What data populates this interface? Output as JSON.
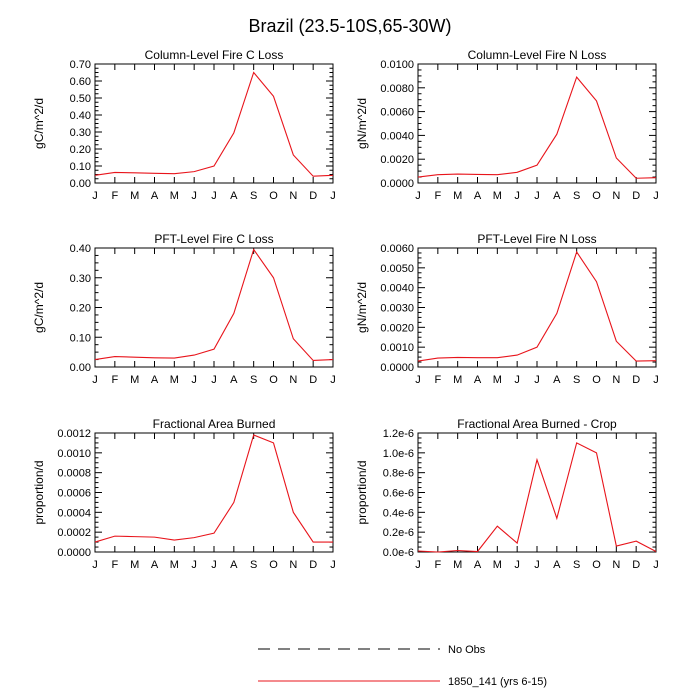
{
  "figure": {
    "title": "Brazil (23.5-10S,65-30W)"
  },
  "colors": {
    "series": "#e8141b",
    "axes": "#000000",
    "background": "#ffffff"
  },
  "legend": {
    "items": [
      {
        "label": "No Obs",
        "style": "dashed",
        "color": "#000000"
      },
      {
        "label": "1850_141 (yrs 6-15)",
        "style": "solid",
        "color": "#e8141b"
      }
    ]
  },
  "chart_data": [
    {
      "type": "line",
      "title": "Column-Level Fire C Loss",
      "ylabel": "gC/m^2/d",
      "xticks": [
        "J",
        "F",
        "M",
        "A",
        "M",
        "J",
        "J",
        "A",
        "S",
        "O",
        "N",
        "D",
        "J"
      ],
      "ylim": [
        0,
        0.7
      ],
      "yticks": [
        0.0,
        0.1,
        0.2,
        0.3,
        0.4,
        0.5,
        0.6,
        0.7
      ],
      "ytick_labels": [
        "0.00",
        "0.10",
        "0.20",
        "0.30",
        "0.40",
        "0.50",
        "0.60",
        "0.70"
      ],
      "series": [
        {
          "values": [
            0.045,
            0.062,
            0.06,
            0.057,
            0.055,
            0.067,
            0.1,
            0.295,
            0.65,
            0.51,
            0.165,
            0.04,
            0.045
          ]
        }
      ]
    },
    {
      "type": "line",
      "title": "Column-Level Fire N Loss",
      "ylabel": "gN/m^2/d",
      "xticks": [
        "J",
        "F",
        "M",
        "A",
        "M",
        "J",
        "J",
        "A",
        "S",
        "O",
        "N",
        "D",
        "J"
      ],
      "ylim": [
        0,
        0.01
      ],
      "yticks": [
        0.0,
        0.002,
        0.004,
        0.006,
        0.008,
        0.01
      ],
      "ytick_labels": [
        "0.0000",
        "0.0020",
        "0.0040",
        "0.0060",
        "0.0080",
        "0.0100"
      ],
      "series": [
        {
          "values": [
            0.0005,
            0.0007,
            0.00075,
            0.00072,
            0.0007,
            0.0009,
            0.0015,
            0.0041,
            0.0089,
            0.0069,
            0.0021,
            0.0004,
            0.00045
          ]
        }
      ]
    },
    {
      "type": "line",
      "title": "PFT-Level Fire C Loss",
      "ylabel": "gC/m^2/d",
      "xticks": [
        "J",
        "F",
        "M",
        "A",
        "M",
        "J",
        "J",
        "A",
        "S",
        "O",
        "N",
        "D",
        "J"
      ],
      "ylim": [
        0,
        0.4
      ],
      "yticks": [
        0.0,
        0.1,
        0.2,
        0.3,
        0.4
      ],
      "ytick_labels": [
        "0.00",
        "0.10",
        "0.20",
        "0.30",
        "0.40"
      ],
      "series": [
        {
          "values": [
            0.025,
            0.035,
            0.033,
            0.031,
            0.03,
            0.04,
            0.06,
            0.18,
            0.395,
            0.3,
            0.095,
            0.022,
            0.025
          ]
        }
      ]
    },
    {
      "type": "line",
      "title": "PFT-Level Fire N Loss",
      "ylabel": "gN/m^2/d",
      "xticks": [
        "J",
        "F",
        "M",
        "A",
        "M",
        "J",
        "J",
        "A",
        "S",
        "O",
        "N",
        "D",
        "J"
      ],
      "ylim": [
        0,
        0.006
      ],
      "yticks": [
        0.0,
        0.001,
        0.002,
        0.003,
        0.004,
        0.005,
        0.006
      ],
      "ytick_labels": [
        "0.0000",
        "0.0010",
        "0.0020",
        "0.0030",
        "0.0040",
        "0.0050",
        "0.0060"
      ],
      "series": [
        {
          "values": [
            0.0003,
            0.00045,
            0.00048,
            0.00047,
            0.00047,
            0.0006,
            0.001,
            0.0027,
            0.0058,
            0.0043,
            0.0013,
            0.0003,
            0.00032
          ]
        }
      ]
    },
    {
      "type": "line",
      "title": "Fractional Area Burned",
      "ylabel": "proportion/d",
      "xticks": [
        "J",
        "F",
        "M",
        "A",
        "M",
        "J",
        "J",
        "A",
        "S",
        "O",
        "N",
        "D",
        "J"
      ],
      "ylim": [
        0,
        0.0012
      ],
      "yticks": [
        0.0,
        0.0002,
        0.0004,
        0.0006,
        0.0008,
        0.001,
        0.0012
      ],
      "ytick_labels": [
        "0.0000",
        "0.0002",
        "0.0004",
        "0.0006",
        "0.0008",
        "0.0010",
        "0.0012"
      ],
      "series": [
        {
          "values": [
            0.0001,
            0.00016,
            0.000155,
            0.00015,
            0.00012,
            0.000145,
            0.00019,
            0.0005,
            0.00118,
            0.0011,
            0.0004,
            0.0001,
            0.0001
          ]
        }
      ]
    },
    {
      "type": "line",
      "title": "Fractional Area Burned - Crop",
      "ylabel": "proportion/d",
      "xticks": [
        "J",
        "F",
        "M",
        "A",
        "M",
        "J",
        "J",
        "A",
        "S",
        "O",
        "N",
        "D",
        "J"
      ],
      "ylim": [
        0,
        1.2e-06
      ],
      "yticks": [
        0,
        2e-07,
        4e-07,
        6e-07,
        8e-07,
        1e-06,
        1.2e-06
      ],
      "ytick_labels": [
        "0.0e-6",
        "0.2e-6",
        "0.4e-6",
        "0.6e-6",
        "0.8e-6",
        "1.0e-6",
        "1.2e-6"
      ],
      "series": [
        {
          "values": [
            1e-08,
            0,
            1.5e-08,
            5e-09,
            2.6e-07,
            9e-08,
            9.3e-07,
            3.4e-07,
            1.1e-06,
            1e-06,
            6e-08,
            1.1e-07,
            5e-09
          ]
        }
      ]
    }
  ]
}
